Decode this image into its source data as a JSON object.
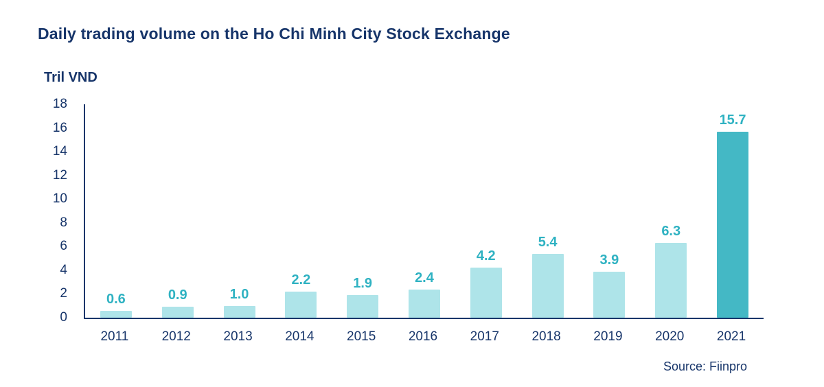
{
  "chart_data": {
    "type": "bar",
    "title": "Daily trading volume on the Ho Chi Minh City Stock Exchange",
    "ylabel": "Tril VND",
    "xlabel": "",
    "categories": [
      "2011",
      "2012",
      "2013",
      "2014",
      "2015",
      "2016",
      "2017",
      "2018",
      "2019",
      "2020",
      "2021"
    ],
    "values": [
      0.6,
      0.9,
      1.0,
      2.2,
      1.9,
      2.4,
      4.2,
      5.4,
      3.9,
      6.3,
      15.7
    ],
    "value_labels": [
      "0.6",
      "0.9",
      "1.0",
      "2.2",
      "1.9",
      "2.4",
      "4.2",
      "5.4",
      "3.9",
      "6.3",
      "15.7"
    ],
    "ylim": [
      0,
      18
    ],
    "ytick_step": 2,
    "grid": false,
    "legend": false,
    "highlight_index": 10,
    "source": "Source: Fiinpro",
    "colors": {
      "bar": "#aee4e9",
      "bar_highlight": "#44b8c5",
      "value_label": "#2fb2c2",
      "axis_text": "#17356a"
    }
  }
}
